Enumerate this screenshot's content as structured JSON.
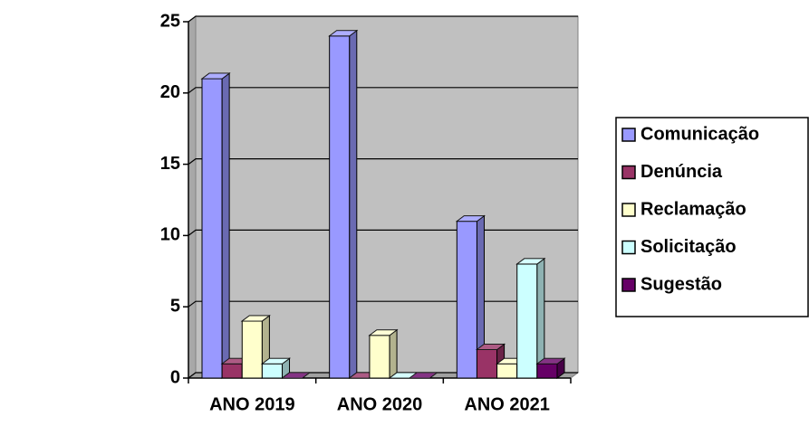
{
  "chart_data": {
    "type": "bar3d",
    "categories": [
      "ANO 2019",
      "ANO 2020",
      "ANO 2021"
    ],
    "series": [
      {
        "name": "Comunicação",
        "color": "#9999ff",
        "values": [
          21,
          24,
          11
        ]
      },
      {
        "name": "Denúncia",
        "color": "#993366",
        "values": [
          1,
          0,
          2
        ]
      },
      {
        "name": "Reclamação",
        "color": "#ffffcc",
        "values": [
          4,
          3,
          1
        ]
      },
      {
        "name": "Solicitação",
        "color": "#ccffff",
        "values": [
          1,
          0,
          8
        ]
      },
      {
        "name": "Sugestão",
        "color": "#660066",
        "values": [
          0,
          0,
          1
        ]
      }
    ],
    "ylim": [
      0,
      25
    ],
    "yticks": [
      0,
      5,
      10,
      15,
      20,
      25
    ],
    "grid": true,
    "legend": "right"
  }
}
